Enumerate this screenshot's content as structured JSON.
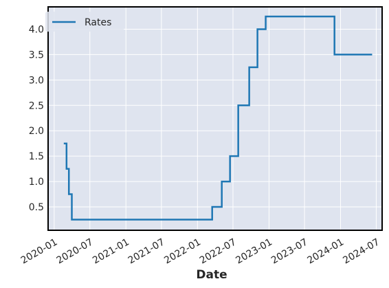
{
  "chart_data": {
    "type": "line",
    "xlabel": "Date",
    "ylabel": "",
    "x_ticks": [
      "2020-01",
      "2020-07",
      "2021-01",
      "2021-07",
      "2022-01",
      "2022-07",
      "2023-01",
      "2023-07",
      "2024-01",
      "2024-07"
    ],
    "y_ticks": [
      "0.5",
      "1.0",
      "1.5",
      "2.0",
      "2.5",
      "3.0",
      "3.5",
      "4.0"
    ],
    "xlim": [
      "2019-12-01",
      "2024-07-31"
    ],
    "ylim": [
      0.04,
      4.44
    ],
    "grid": true,
    "legend": "top-left",
    "background": "#dfe4ef",
    "series": [
      {
        "name": "Rates",
        "color": "#1f77b4",
        "step": "post",
        "points": [
          {
            "x": "2020-02-19",
            "y": 1.75
          },
          {
            "x": "2020-03-04",
            "y": 1.25
          },
          {
            "x": "2020-03-16",
            "y": 0.75
          },
          {
            "x": "2020-03-31",
            "y": 0.25
          },
          {
            "x": "2022-03-17",
            "y": 0.5
          },
          {
            "x": "2022-05-05",
            "y": 1.0
          },
          {
            "x": "2022-06-16",
            "y": 1.5
          },
          {
            "x": "2022-07-28",
            "y": 2.5
          },
          {
            "x": "2022-09-22",
            "y": 3.25
          },
          {
            "x": "2022-11-03",
            "y": 4.0
          },
          {
            "x": "2022-12-15",
            "y": 4.25
          },
          {
            "x": "2023-12-01",
            "y": 3.5
          },
          {
            "x": "2024-06-10",
            "y": 3.5
          }
        ]
      }
    ]
  }
}
